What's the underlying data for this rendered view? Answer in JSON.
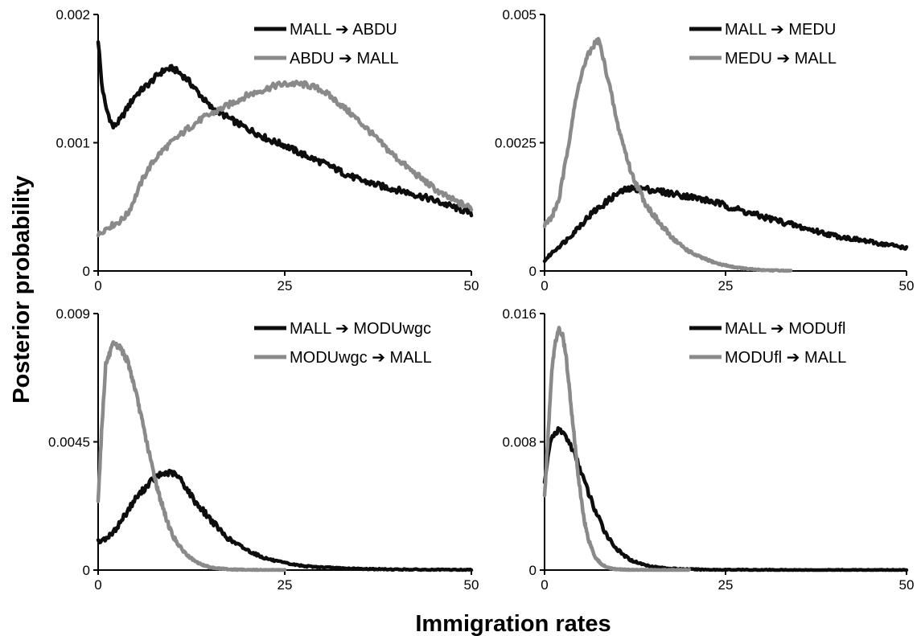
{
  "figure": {
    "ylabel": "Posterior probability",
    "xlabel": "Immigration rates"
  },
  "colors": {
    "series_dark": "#0d0d0d",
    "series_light": "#8a8a8a",
    "axis": "#000000",
    "background": "#ffffff"
  },
  "chart_data": [
    {
      "type": "line",
      "panel": "top-left",
      "xlim": [
        0,
        50
      ],
      "ylim": [
        0,
        0.002
      ],
      "xticks": [
        0,
        25,
        50
      ],
      "xtick_labels": [
        "0",
        "25",
        "50"
      ],
      "yticks": [
        0,
        0.001,
        0.002
      ],
      "ytick_labels": [
        "0",
        "0.001",
        "0.002"
      ],
      "legend_position": "top-right",
      "grid": false,
      "series": [
        {
          "name": "MALL ➔ ABDU",
          "color": "#0d0d0d",
          "x": [
            0,
            0.5,
            1,
            2,
            3,
            4,
            5,
            6,
            7,
            8,
            9,
            10,
            11,
            12,
            13,
            14,
            15,
            17,
            19,
            21,
            23,
            25,
            27,
            29,
            31,
            33,
            35,
            38,
            41,
            44,
            47,
            50
          ],
          "y": [
            0.0018,
            0.00145,
            0.00128,
            0.00112,
            0.00118,
            0.00128,
            0.00137,
            0.00142,
            0.00147,
            0.00153,
            0.00157,
            0.00158,
            0.00154,
            0.00149,
            0.00142,
            0.00135,
            0.00128,
            0.00121,
            0.00114,
            0.00108,
            0.00102,
            0.00098,
            0.00092,
            0.00087,
            0.00082,
            0.00076,
            0.00071,
            0.00066,
            0.00062,
            0.00057,
            0.00051,
            0.00045
          ]
        },
        {
          "name": "ABDU ➔ MALL",
          "color": "#8a8a8a",
          "x": [
            0,
            1,
            2,
            3,
            4,
            5,
            6,
            7,
            8,
            9,
            10,
            12,
            14,
            16,
            18,
            20,
            22,
            24,
            26,
            28,
            30,
            32,
            34,
            36,
            38,
            40,
            42,
            44,
            46,
            48,
            50
          ],
          "y": [
            0.00028,
            0.00033,
            0.00036,
            0.00039,
            0.00045,
            0.00058,
            0.00072,
            0.00082,
            0.0009,
            0.00096,
            0.00101,
            0.00111,
            0.00119,
            0.00125,
            0.00131,
            0.00137,
            0.00141,
            0.00145,
            0.00146,
            0.00145,
            0.00141,
            0.00132,
            0.00122,
            0.00111,
            0.00099,
            0.00088,
            0.00078,
            0.00069,
            0.0006,
            0.00054,
            0.00049
          ]
        }
      ]
    },
    {
      "type": "line",
      "panel": "top-right",
      "xlim": [
        0,
        50
      ],
      "ylim": [
        0,
        0.005
      ],
      "xticks": [
        0,
        25,
        50
      ],
      "xtick_labels": [
        "0",
        "25",
        "50"
      ],
      "yticks": [
        0,
        0.0025,
        0.005
      ],
      "ytick_labels": [
        "0",
        "0.0025",
        "0.005"
      ],
      "legend_position": "top-right",
      "grid": false,
      "series": [
        {
          "name": "MALL ➔ MEDU",
          "color": "#0d0d0d",
          "x": [
            0,
            1,
            2,
            3,
            4,
            5,
            6,
            7,
            8,
            9,
            10,
            11,
            12,
            13,
            14,
            16,
            18,
            20,
            22,
            24,
            26,
            28,
            30,
            32,
            34,
            36,
            38,
            40,
            42,
            44,
            46,
            48,
            50
          ],
          "y": [
            0.0002,
            0.00035,
            0.00048,
            0.0006,
            0.00075,
            0.0009,
            0.00105,
            0.00118,
            0.00128,
            0.0014,
            0.0015,
            0.00157,
            0.0016,
            0.0016,
            0.0016,
            0.00155,
            0.0015,
            0.00145,
            0.00139,
            0.00132,
            0.00123,
            0.00114,
            0.00106,
            0.00099,
            0.00091,
            0.00083,
            0.00076,
            0.00069,
            0.00064,
            0.00059,
            0.00054,
            0.0005,
            0.00045
          ]
        },
        {
          "name": "MEDU ➔ MALL",
          "color": "#8a8a8a",
          "x": [
            0,
            1,
            2,
            3,
            4,
            5,
            6,
            7,
            7.5,
            8,
            9,
            10,
            11,
            12,
            13,
            14,
            15,
            16,
            17,
            18,
            19,
            20,
            21,
            22,
            24,
            26,
            28,
            30,
            32,
            34
          ],
          "y": [
            0.0009,
            0.00105,
            0.0014,
            0.0022,
            0.0031,
            0.0038,
            0.0042,
            0.00445,
            0.0045,
            0.0042,
            0.0036,
            0.0029,
            0.0024,
            0.0019,
            0.0016,
            0.0013,
            0.0011,
            0.0009,
            0.00075,
            0.0006,
            0.00048,
            0.00038,
            0.0003,
            0.00024,
            0.00014,
            8e-05,
            4e-05,
            2e-05,
            1e-05,
            0
          ]
        }
      ]
    },
    {
      "type": "line",
      "panel": "bottom-left",
      "xlim": [
        0,
        50
      ],
      "ylim": [
        0,
        0.009
      ],
      "xticks": [
        0,
        25,
        50
      ],
      "xtick_labels": [
        "0",
        "25",
        "50"
      ],
      "yticks": [
        0,
        0.0045,
        0.009
      ],
      "ytick_labels": [
        "0",
        "0.0045",
        "0.009"
      ],
      "legend_position": "top-right",
      "grid": false,
      "series": [
        {
          "name": "MALL ➔ MODUwgc",
          "color": "#0d0d0d",
          "x": [
            0,
            1,
            2,
            3,
            4,
            5,
            6,
            7,
            8,
            9,
            10,
            11,
            12,
            13,
            14,
            15,
            16,
            17,
            18,
            20,
            22,
            24,
            26,
            28,
            30,
            32,
            34,
            36,
            38,
            40,
            42,
            44,
            46,
            48,
            50
          ],
          "y": [
            0.001,
            0.0011,
            0.0013,
            0.0017,
            0.0021,
            0.0025,
            0.0028,
            0.0031,
            0.0033,
            0.0034,
            0.0034,
            0.0032,
            0.0028,
            0.0024,
            0.0021,
            0.0018,
            0.0015,
            0.0012,
            0.001,
            0.0007,
            0.00045,
            0.0003,
            0.0002,
            0.00013,
            0.0001,
            7e-05,
            5e-05,
            4e-05,
            3e-05,
            2e-05,
            2e-05,
            1e-05,
            1e-05,
            1e-05,
            1e-05
          ]
        },
        {
          "name": "MODUwgc ➔ MALL",
          "color": "#8a8a8a",
          "x": [
            0,
            0.5,
            1,
            2,
            3,
            4,
            5,
            6,
            7,
            8,
            9,
            10,
            11,
            12,
            13,
            14,
            15,
            16,
            17,
            18,
            20,
            22,
            25
          ],
          "y": [
            0.0025,
            0.005,
            0.0072,
            0.0079,
            0.0078,
            0.0073,
            0.0063,
            0.0051,
            0.0039,
            0.0028,
            0.0019,
            0.0012,
            0.0008,
            0.0005,
            0.0003,
            0.00018,
            0.0001,
            6e-05,
            4e-05,
            2e-05,
            1e-05,
            0,
            0
          ]
        }
      ]
    },
    {
      "type": "line",
      "panel": "bottom-right",
      "xlim": [
        0,
        50
      ],
      "ylim": [
        0,
        0.016
      ],
      "xticks": [
        0,
        25,
        50
      ],
      "xtick_labels": [
        "0",
        "25",
        "50"
      ],
      "yticks": [
        0,
        0.008,
        0.016
      ],
      "ytick_labels": [
        "0",
        "0.008",
        "0.016"
      ],
      "legend_position": "top-right",
      "grid": false,
      "series": [
        {
          "name": "MALL ➔ MODUfl",
          "color": "#0d0d0d",
          "x": [
            0,
            0.5,
            1,
            1.5,
            2,
            2.5,
            3,
            4,
            5,
            6,
            7,
            8,
            9,
            10,
            11,
            12,
            14,
            16,
            18,
            20,
            22,
            25,
            30,
            35,
            40,
            45,
            50
          ],
          "y": [
            0.0055,
            0.0072,
            0.0082,
            0.0086,
            0.0087,
            0.0086,
            0.0083,
            0.0074,
            0.0062,
            0.0049,
            0.0037,
            0.0027,
            0.0019,
            0.0013,
            0.0009,
            0.0006,
            0.0003,
            0.00015,
            8e-05,
            5e-05,
            3e-05,
            2e-05,
            1e-05,
            0,
            0,
            0,
            0
          ]
        },
        {
          "name": "MODUfl ➔ MALL",
          "color": "#8a8a8a",
          "x": [
            0,
            0.5,
            1,
            1.5,
            2,
            2.5,
            3,
            3.5,
            4,
            4.5,
            5,
            5.5,
            6,
            7,
            8,
            9,
            10,
            12,
            15,
            20
          ],
          "y": [
            0.0045,
            0.0085,
            0.0125,
            0.0143,
            0.015,
            0.0146,
            0.0132,
            0.011,
            0.0087,
            0.0065,
            0.0046,
            0.0031,
            0.002,
            0.0008,
            0.0003,
            0.00012,
            5e-05,
            1e-05,
            0,
            0
          ]
        }
      ]
    }
  ]
}
